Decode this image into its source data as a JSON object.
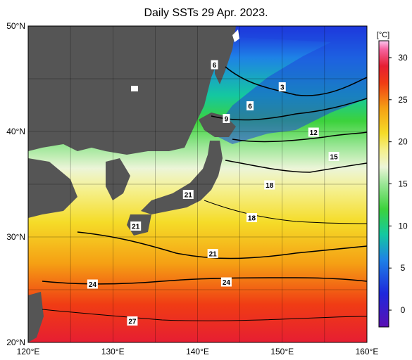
{
  "title": "Daily SSTs 29 Apr. 2023.",
  "map": {
    "lon_range": [
      120,
      160
    ],
    "lat_range": [
      20,
      50
    ],
    "lat_ticks": [
      {
        "value": 50,
        "label": "50°N"
      },
      {
        "value": 40,
        "label": "40°N"
      },
      {
        "value": 30,
        "label": "30°N"
      },
      {
        "value": 20,
        "label": "20°N"
      }
    ],
    "lon_ticks": [
      {
        "value": 120,
        "label": "120°E"
      },
      {
        "value": 130,
        "label": "130°E"
      },
      {
        "value": 140,
        "label": "140°E"
      },
      {
        "value": 150,
        "label": "150°E"
      },
      {
        "value": 160,
        "label": "160°E"
      }
    ],
    "grid": true,
    "land_color": "#555555",
    "contour_labels": [
      {
        "text": "3",
        "lon": 150.0,
        "lat": 44.2
      },
      {
        "text": "6",
        "lon": 142.0,
        "lat": 46.3
      },
      {
        "text": "6",
        "lon": 146.2,
        "lat": 42.4
      },
      {
        "text": "9",
        "lon": 143.4,
        "lat": 41.2
      },
      {
        "text": "12",
        "lon": 153.7,
        "lat": 39.9
      },
      {
        "text": "15",
        "lon": 156.1,
        "lat": 37.6
      },
      {
        "text": "18",
        "lon": 148.5,
        "lat": 34.9
      },
      {
        "text": "18",
        "lon": 146.4,
        "lat": 31.8
      },
      {
        "text": "21",
        "lon": 138.9,
        "lat": 34.0
      },
      {
        "text": "21",
        "lon": 132.7,
        "lat": 31.0
      },
      {
        "text": "21",
        "lon": 141.8,
        "lat": 28.4
      },
      {
        "text": "24",
        "lon": 127.6,
        "lat": 25.5
      },
      {
        "text": "24",
        "lon": 143.4,
        "lat": 25.7
      },
      {
        "text": "27",
        "lon": 132.3,
        "lat": 22.0
      }
    ]
  },
  "colorbar": {
    "unit": "[°C]",
    "min": -2,
    "max": 32,
    "ticks": [
      {
        "value": 30,
        "label": "30"
      },
      {
        "value": 25,
        "label": "25"
      },
      {
        "value": 20,
        "label": "20"
      },
      {
        "value": 15,
        "label": "15"
      },
      {
        "value": 10,
        "label": "10"
      },
      {
        "value": 5,
        "label": "5"
      },
      {
        "value": 0,
        "label": "0"
      }
    ],
    "stops": [
      {
        "value": -2,
        "color": "#5a0fb4"
      },
      {
        "value": 2,
        "color": "#1e28dc"
      },
      {
        "value": 6,
        "color": "#1e82e6"
      },
      {
        "value": 9,
        "color": "#14c8a0"
      },
      {
        "value": 12,
        "color": "#3cd23c"
      },
      {
        "value": 15,
        "color": "#9be696"
      },
      {
        "value": 17,
        "color": "#ecf5d8"
      },
      {
        "value": 19,
        "color": "#f5f08c"
      },
      {
        "value": 21,
        "color": "#f5dc28"
      },
      {
        "value": 24,
        "color": "#f5a014"
      },
      {
        "value": 27,
        "color": "#f03c14"
      },
      {
        "value": 29,
        "color": "#e61e32"
      },
      {
        "value": 31,
        "color": "#f564a0"
      },
      {
        "value": 32,
        "color": "#fac8f0"
      }
    ]
  }
}
